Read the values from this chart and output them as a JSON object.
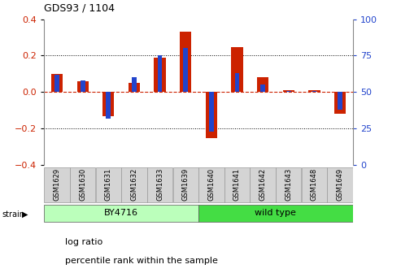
{
  "title": "GDS93 / 1104",
  "samples": [
    "GSM1629",
    "GSM1630",
    "GSM1631",
    "GSM1632",
    "GSM1633",
    "GSM1639",
    "GSM1640",
    "GSM1641",
    "GSM1642",
    "GSM1643",
    "GSM1648",
    "GSM1649"
  ],
  "log_ratio": [
    0.1,
    0.06,
    -0.13,
    0.05,
    0.19,
    0.33,
    -0.25,
    0.245,
    0.08,
    0.01,
    0.01,
    -0.12
  ],
  "percentile_rank": [
    62,
    58,
    32,
    60,
    75,
    80,
    23,
    63,
    55,
    51,
    51,
    38
  ],
  "strain_groups": [
    {
      "label": "BY4716",
      "start": 0,
      "end": 6,
      "color": "#bbffbb"
    },
    {
      "label": "wild type",
      "start": 6,
      "end": 12,
      "color": "#44dd44"
    }
  ],
  "ylim_left": [
    -0.4,
    0.4
  ],
  "ylim_right": [
    0,
    100
  ],
  "left_yticks": [
    -0.4,
    -0.2,
    0.0,
    0.2,
    0.4
  ],
  "right_yticks": [
    0,
    25,
    50,
    75,
    100
  ],
  "bar_color_red": "#cc2200",
  "bar_color_blue": "#2244cc",
  "hline_color": "#cc2200",
  "grid_color": "#000000",
  "bg_color": "#ffffff",
  "tick_label_color_left": "#cc2200",
  "tick_label_color_right": "#2244cc",
  "red_bar_width": 0.45,
  "blue_bar_width": 0.18
}
